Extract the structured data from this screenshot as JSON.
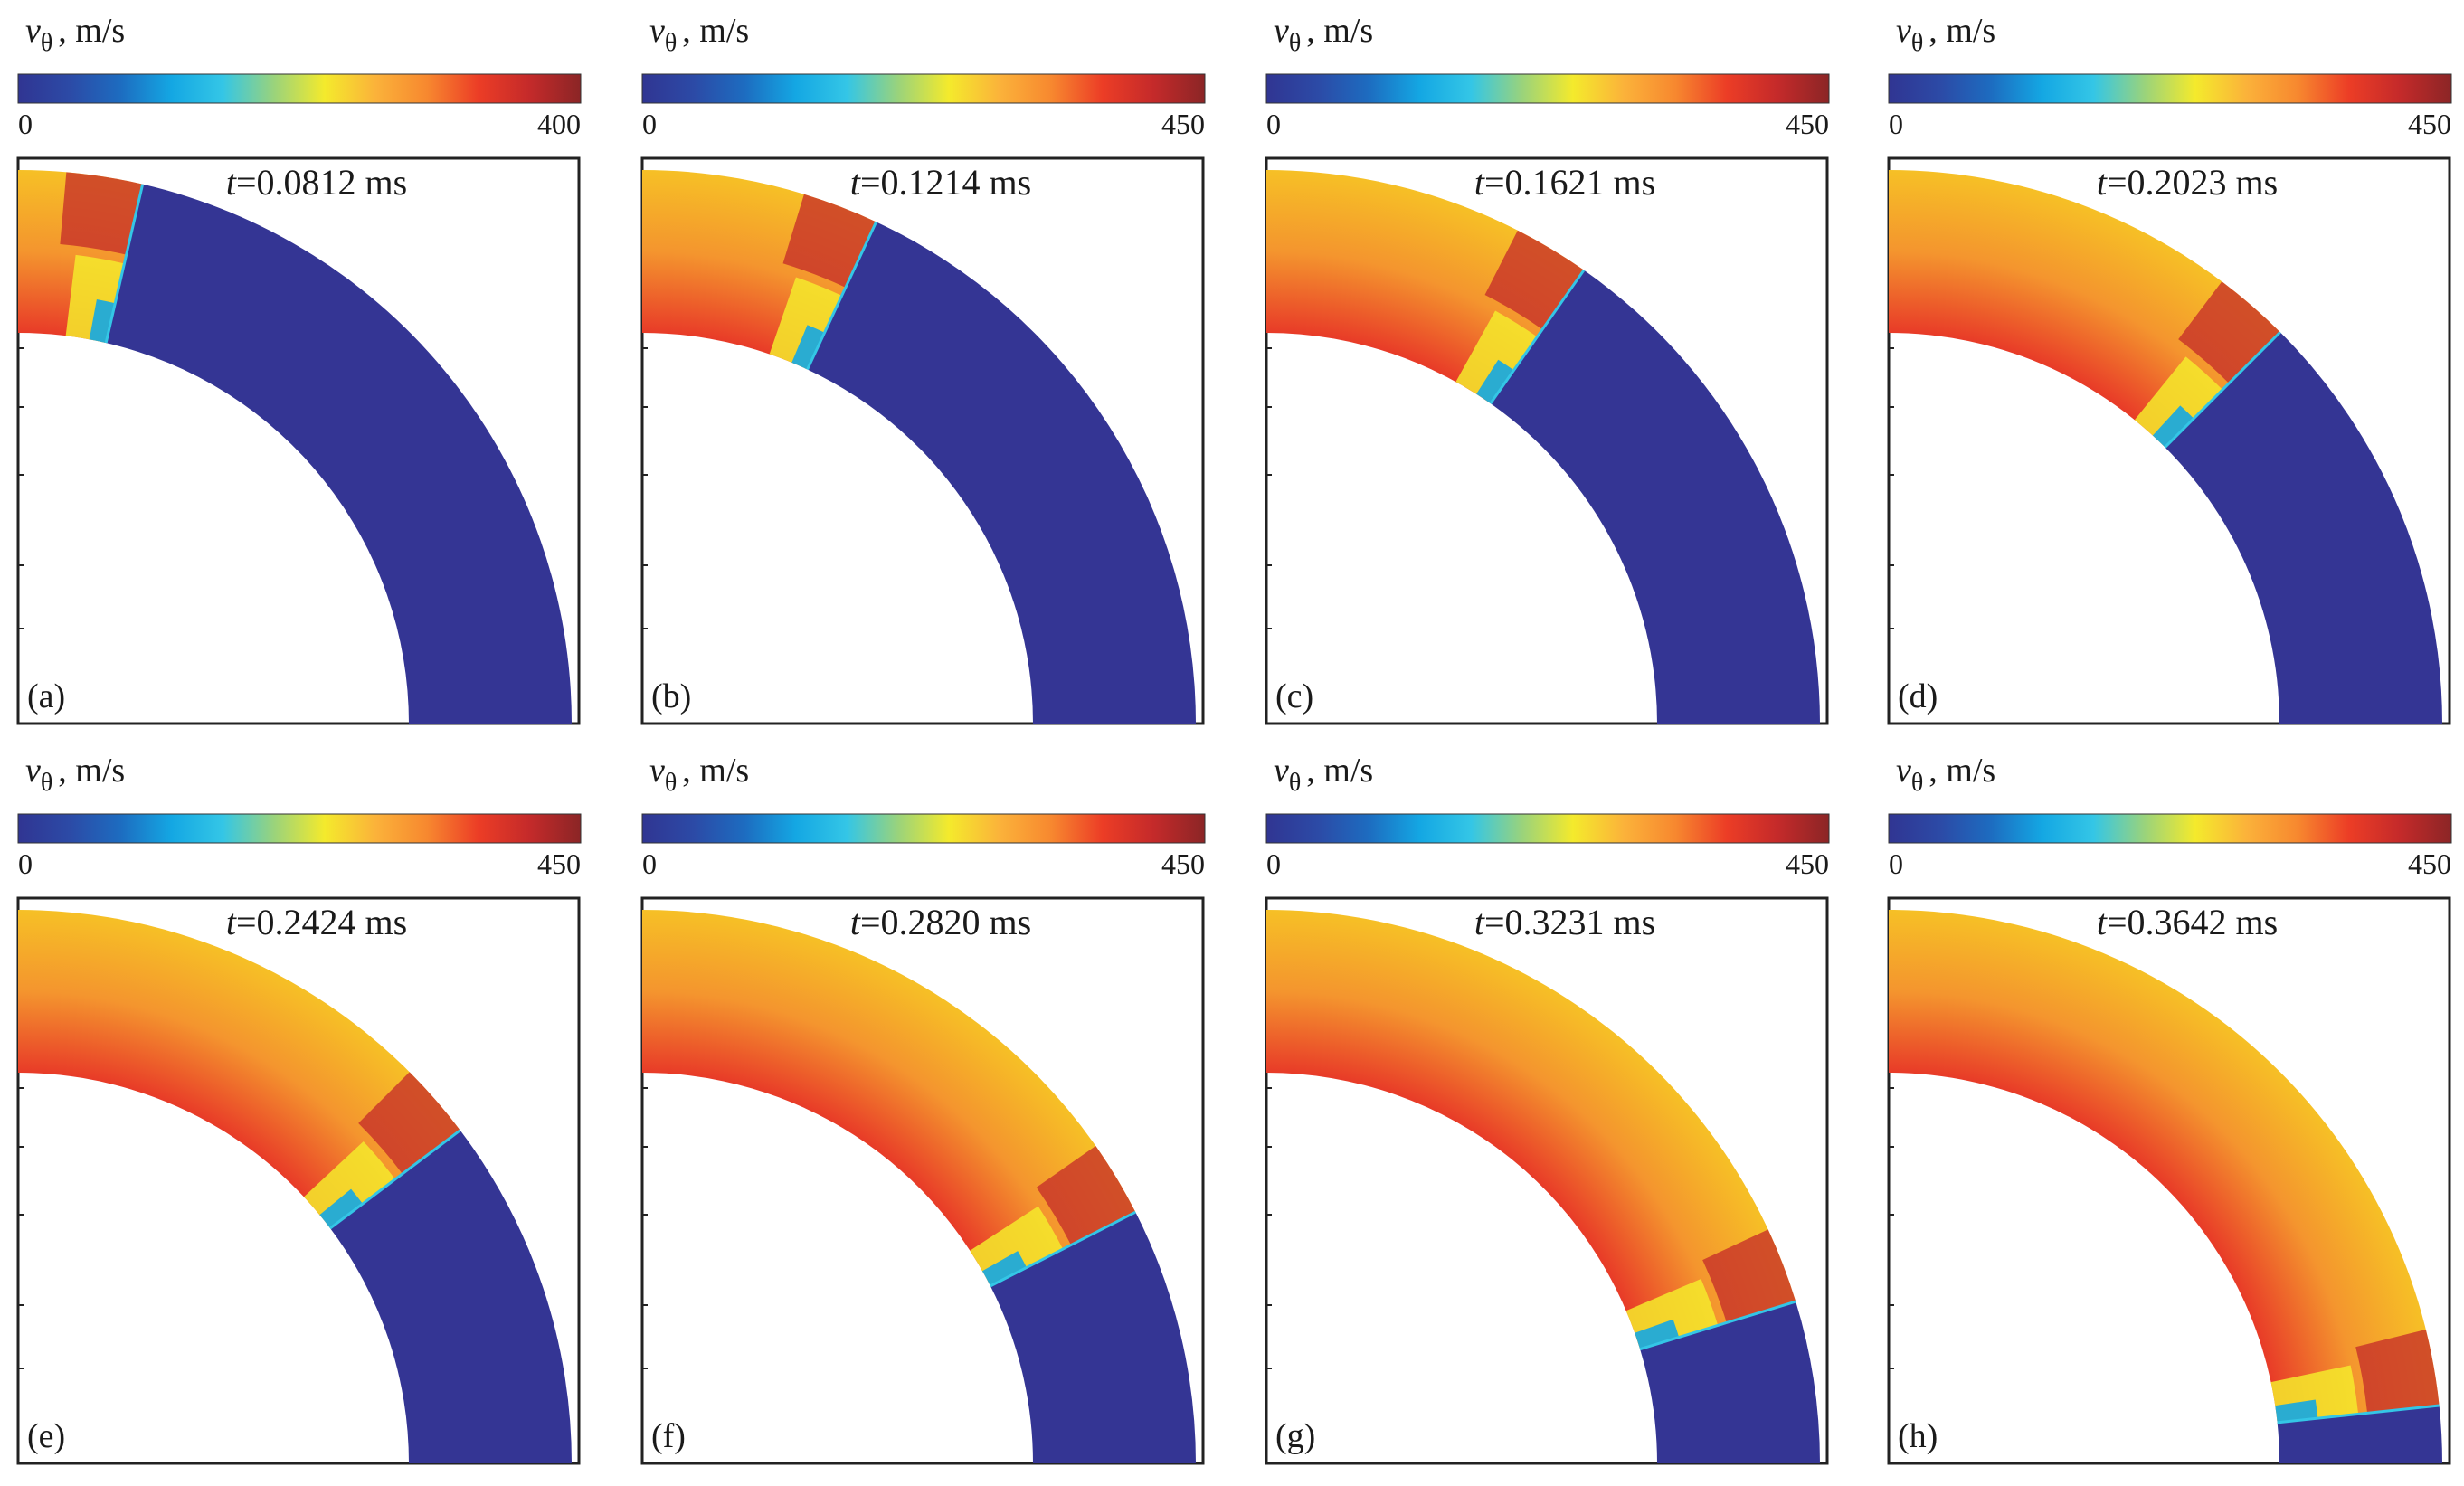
{
  "figure": {
    "panels": [
      {
        "id": "a",
        "tag": "(a)",
        "time_var": "t",
        "time_text": "=0.0812 ms",
        "cbar_min": "0",
        "cbar_max": "400",
        "front_angle_deg": 77
      },
      {
        "id": "b",
        "tag": "(b)",
        "time_var": "t",
        "time_text": "=0.1214 ms",
        "cbar_min": "0",
        "cbar_max": "450",
        "front_angle_deg": 65
      },
      {
        "id": "c",
        "tag": "(c)",
        "time_var": "t",
        "time_text": "=0.1621 ms",
        "cbar_min": "0",
        "cbar_max": "450",
        "front_angle_deg": 55
      },
      {
        "id": "d",
        "tag": "(d)",
        "time_var": "t",
        "time_text": "=0.2023 ms",
        "cbar_min": "0",
        "cbar_max": "450",
        "front_angle_deg": 45
      },
      {
        "id": "e",
        "tag": "(e)",
        "time_var": "t",
        "time_text": "=0.2424 ms",
        "cbar_min": "0",
        "cbar_max": "450",
        "front_angle_deg": 37
      },
      {
        "id": "f",
        "tag": "(f)",
        "time_var": "t",
        "time_text": "=0.2820 ms",
        "cbar_min": "0",
        "cbar_max": "450",
        "front_angle_deg": 27
      },
      {
        "id": "g",
        "tag": "(g)",
        "time_var": "t",
        "time_text": "=0.3231 ms",
        "cbar_min": "0",
        "cbar_max": "450",
        "front_angle_deg": 17
      },
      {
        "id": "h",
        "tag": "(h)",
        "time_var": "t",
        "time_text": "=0.3642 ms",
        "cbar_min": "0",
        "cbar_max": "450",
        "front_angle_deg": 6
      }
    ],
    "colorbar_label": {
      "symbol": "v",
      "subscript": "θ",
      "units": ", m/s"
    },
    "colors": {
      "unshocked": "#343594",
      "colormap": [
        "#303592",
        "#2c4aa6",
        "#1d6cc0",
        "#14a7e3",
        "#34c6e6",
        "#9ad37b",
        "#f4ea2c",
        "#fbb23a",
        "#f7882f",
        "#ec3d26",
        "#c42a2a",
        "#8b2526"
      ],
      "field_outer": "#f6c026",
      "field_mid": "#f4952e",
      "field_inner": "#e83b28"
    }
  }
}
